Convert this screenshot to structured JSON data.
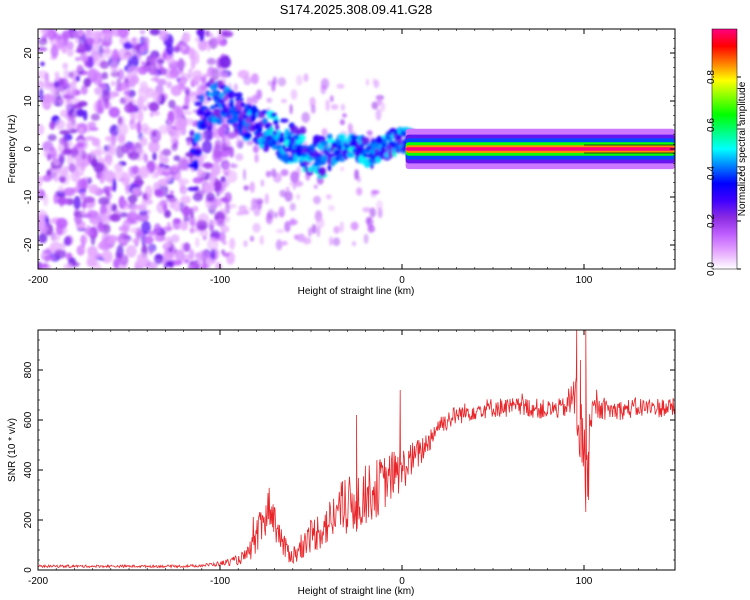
{
  "chart_data": [
    {
      "type": "heatmap",
      "title": "S174.2025.308.09.41.G28",
      "xlabel": "Height of straight line (km)",
      "ylabel": "Frequency (Hz)",
      "xlim": [
        -200,
        150
      ],
      "ylim": [
        -25,
        25
      ],
      "x_ticks": [
        -200,
        -100,
        0,
        100
      ],
      "y_ticks": [
        -20,
        -10,
        0,
        10,
        20
      ],
      "colorbar": {
        "label": "Normalized spectral amplitude",
        "range": [
          0,
          1
        ],
        "ticks": [
          0.0,
          0.2,
          0.4,
          0.6,
          0.8
        ],
        "colors": [
          "#ffffff",
          "#e6a8ff",
          "#c060ff",
          "#8a2be2",
          "#3f00ff",
          "#0000ff",
          "#0080ff",
          "#00ffff",
          "#00ff80",
          "#00ff00",
          "#80ff00",
          "#ffff00",
          "#ff8000",
          "#ff0000",
          "#ff0080"
        ]
      },
      "ridge": [
        {
          "x": -112,
          "y": 8
        },
        {
          "x": -105,
          "y": 10
        },
        {
          "x": -95,
          "y": 9
        },
        {
          "x": -85,
          "y": 6
        },
        {
          "x": -75,
          "y": 4
        },
        {
          "x": -65,
          "y": 2
        },
        {
          "x": -55,
          "y": 0
        },
        {
          "x": -45,
          "y": -2
        },
        {
          "x": -35,
          "y": 0
        },
        {
          "x": -25,
          "y": 0
        },
        {
          "x": -15,
          "y": -1
        },
        {
          "x": -8,
          "y": 1
        },
        {
          "x": 0,
          "y": 2
        },
        {
          "x": 10,
          "y": 0.5
        },
        {
          "x": 20,
          "y": 0
        },
        {
          "x": 40,
          "y": 0
        },
        {
          "x": 60,
          "y": 0
        },
        {
          "x": 80,
          "y": 0
        },
        {
          "x": 100,
          "y": 0
        },
        {
          "x": 120,
          "y": 0
        },
        {
          "x": 150,
          "y": 0
        }
      ]
    },
    {
      "type": "line",
      "title": "",
      "xlabel": "Height of straight line (km)",
      "ylabel": "SNR (10 * v/v)",
      "xlim": [
        -200,
        150
      ],
      "ylim": [
        0,
        960
      ],
      "x_ticks": [
        -200,
        -100,
        0,
        100
      ],
      "y_ticks": [
        0,
        200,
        400,
        600,
        800
      ],
      "series": [
        {
          "name": "SNR",
          "color": "#e8262a",
          "x": [
            -200,
            -180,
            -160,
            -140,
            -120,
            -110,
            -100,
            -90,
            -85,
            -80,
            -75,
            -72,
            -70,
            -65,
            -60,
            -55,
            -50,
            -45,
            -40,
            -35,
            -30,
            -25,
            -20,
            -15,
            -10,
            -5,
            0,
            5,
            10,
            15,
            20,
            25,
            30,
            40,
            50,
            60,
            70,
            80,
            90,
            95,
            97,
            100,
            102,
            103,
            105,
            110,
            120,
            130,
            140,
            150
          ],
          "values": [
            15,
            15,
            15,
            15,
            15,
            18,
            25,
            40,
            60,
            120,
            220,
            260,
            200,
            90,
            60,
            80,
            140,
            160,
            190,
            240,
            250,
            270,
            300,
            320,
            350,
            380,
            400,
            440,
            470,
            520,
            580,
            600,
            620,
            640,
            650,
            650,
            650,
            640,
            650,
            700,
            600,
            450,
            300,
            600,
            650,
            640,
            640,
            650,
            650,
            650
          ],
          "noise": [
            5,
            5,
            5,
            5,
            5,
            6,
            10,
            20,
            30,
            70,
            90,
            90,
            80,
            50,
            40,
            50,
            70,
            80,
            90,
            110,
            120,
            130,
            120,
            120,
            110,
            100,
            90,
            70,
            60,
            50,
            40,
            40,
            40,
            40,
            40,
            40,
            40,
            40,
            40,
            120,
            160,
            180,
            150,
            80,
            40,
            40,
            40,
            40,
            40,
            40
          ],
          "spikes": [
            {
              "x": 96,
              "y": 960
            },
            {
              "x": 98,
              "y": 840
            },
            {
              "x": 101,
              "y": 960
            },
            {
              "x": 102.5,
              "y": 280
            },
            {
              "x": -1,
              "y": 720
            },
            {
              "x": -25,
              "y": 620
            }
          ]
        }
      ]
    }
  ]
}
